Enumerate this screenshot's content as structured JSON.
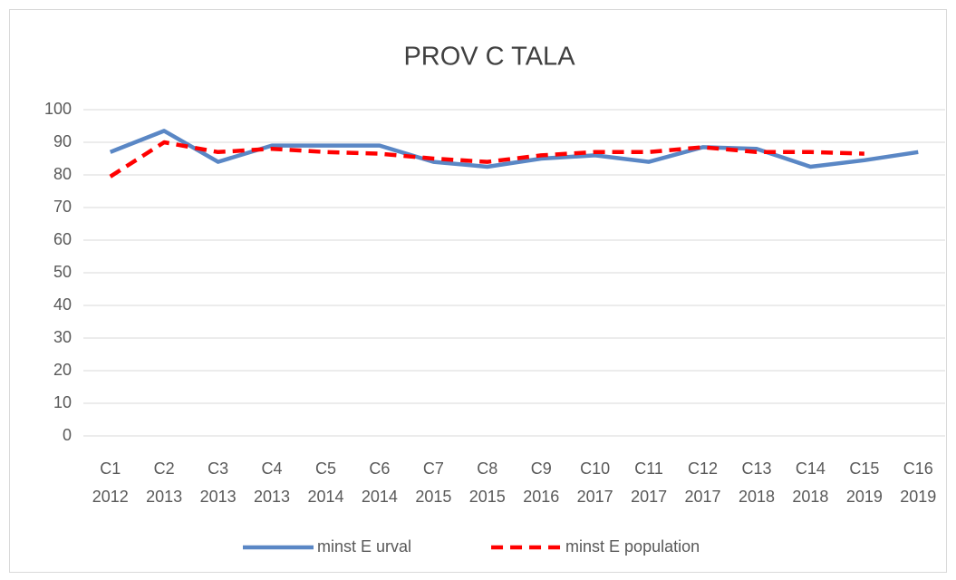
{
  "chart_data": {
    "type": "line",
    "title": "PROV C TALA",
    "categories": [
      [
        "C1",
        "2012"
      ],
      [
        "C2",
        "2013"
      ],
      [
        "C3",
        "2013"
      ],
      [
        "C4",
        "2013"
      ],
      [
        "C5",
        "2014"
      ],
      [
        "C6",
        "2014"
      ],
      [
        "C7",
        "2015"
      ],
      [
        "C8",
        "2015"
      ],
      [
        "C9",
        "2016"
      ],
      [
        "C10",
        "2017"
      ],
      [
        "C11",
        "2017"
      ],
      [
        "C12",
        "2017"
      ],
      [
        "C13",
        "2018"
      ],
      [
        "C14",
        "2018"
      ],
      [
        "C15",
        "2019"
      ],
      [
        "C16",
        "2019"
      ]
    ],
    "series": [
      {
        "name": "minst E urval",
        "color": "#5a87c5",
        "dash": false,
        "values": [
          87,
          93.5,
          84,
          89,
          89,
          89,
          84,
          82.5,
          85,
          86,
          84,
          88.5,
          88,
          82.5,
          84.5,
          87
        ]
      },
      {
        "name": "minst E population",
        "color": "#ff0000",
        "dash": true,
        "values": [
          79.5,
          90,
          87,
          88,
          87,
          86.5,
          85,
          84,
          86,
          87,
          87,
          88.5,
          87,
          87,
          86.5,
          null
        ]
      }
    ],
    "ylim": [
      0,
      100
    ],
    "yticks": [
      0,
      10,
      20,
      30,
      40,
      50,
      60,
      70,
      80,
      90,
      100
    ],
    "grid": true,
    "legend": "bottom"
  }
}
